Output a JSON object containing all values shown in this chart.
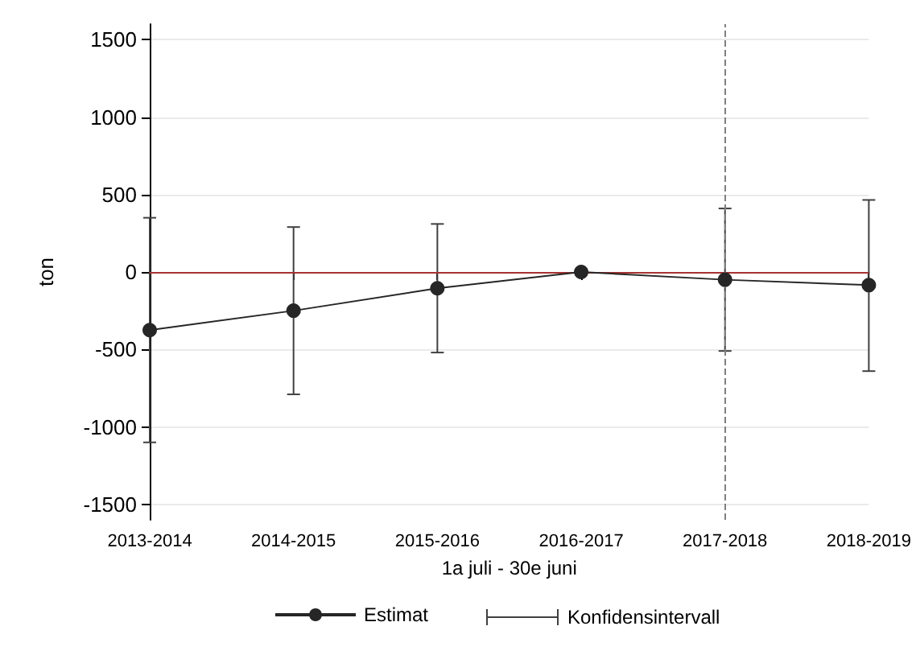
{
  "chart_data": {
    "type": "line",
    "xlabel": "1a juli - 30e juni",
    "ylabel": "ton",
    "categories": [
      "2013-2014",
      "2014-2015",
      "2015-2016",
      "2016-2017",
      "2017-2018",
      "2018-2019"
    ],
    "series": [
      {
        "name": "Estimat",
        "color": "#262626",
        "values": [
          -375,
          -250,
          -105,
          0,
          -50,
          -85
        ],
        "errors": [
          [
            -1100,
            350
          ],
          [
            -790,
            290
          ],
          [
            -520,
            310
          ],
          null,
          [
            -510,
            410
          ],
          [
            -640,
            465
          ]
        ]
      }
    ],
    "ylim": [
      -1600,
      1600
    ],
    "yticks": [
      -1500,
      -1000,
      -500,
      0,
      500,
      1000,
      1500
    ],
    "ref_lines": [
      {
        "axis": "y",
        "value": 0,
        "color": "#a83232",
        "line_style": "solid"
      },
      {
        "axis": "x",
        "value": "2017-2018",
        "color": "#7f7f7f",
        "line_style": "dashed"
      }
    ],
    "grid": "y",
    "legend": "bottom",
    "marker": "circle",
    "line_style": "solid",
    "annotations": [
      "Konfidensintervall"
    ]
  }
}
